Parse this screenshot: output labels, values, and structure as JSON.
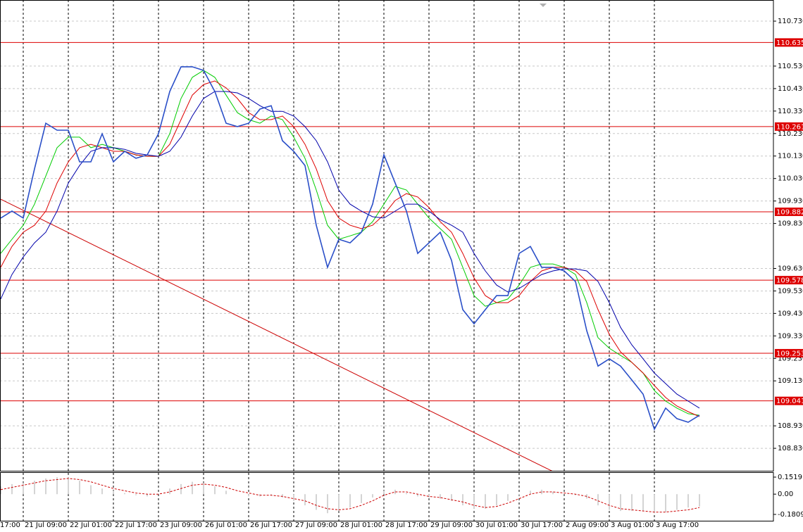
{
  "chart_data": [
    {
      "type": "line",
      "categories": [
        "17:00",
        null,
        "21 Jul 09:00",
        null,
        null,
        null,
        "22 Jul 01:00",
        null,
        null,
        null,
        "22 Jul 17:00",
        null,
        null,
        null,
        "23 Jul 09:00",
        null,
        null,
        null,
        "26 Jul 01:00",
        null,
        null,
        null,
        "26 Jul 17:00",
        null,
        null,
        null,
        "27 Jul 09:00",
        null,
        null,
        null,
        "28 Jul 01:00",
        null,
        null,
        null,
        "28 Jul 17:00",
        null,
        null,
        null,
        "29 Jul 09:00",
        null,
        null,
        null,
        "30 Jul 01:00",
        null,
        null,
        null,
        "30 Jul 17:00",
        null,
        null,
        null,
        "2 Aug 09:00",
        null,
        null,
        null,
        "3 Aug 01:00",
        null,
        null,
        null,
        "3 Aug 17:00",
        null,
        null,
        null,
        null
      ],
      "series": [
        {
          "color": "#2a4fc8",
          "values": [
            109.854,
            109.885,
            109.854,
            110.073,
            110.276,
            110.245,
            110.245,
            110.104,
            110.104,
            110.229,
            110.104,
            110.151,
            110.12,
            110.135,
            110.229,
            110.417,
            110.527,
            110.527,
            110.511,
            110.417,
            110.276,
            110.261,
            110.276,
            110.339,
            110.354,
            110.198,
            110.151,
            110.088,
            109.822,
            109.635,
            109.76,
            109.744,
            109.791,
            109.916,
            110.135,
            110.01,
            109.885,
            109.697,
            109.744,
            109.791,
            109.666,
            109.447,
            109.384,
            109.447,
            109.509,
            109.509,
            109.697,
            109.728,
            109.635,
            109.635,
            109.619,
            109.572,
            109.353,
            109.196,
            109.228,
            109.196,
            109.134,
            109.071,
            108.915,
            109.009,
            108.962,
            108.946,
            108.977
          ]
        },
        {
          "color": "#00cc00",
          "values": [
            109.697,
            109.76,
            109.822,
            109.916,
            110.041,
            110.167,
            110.214,
            110.214,
            110.167,
            110.182,
            110.167,
            110.151,
            110.135,
            110.129,
            110.129,
            110.229,
            110.386,
            110.48,
            110.511,
            110.48,
            110.401,
            110.323,
            110.292,
            110.276,
            110.308,
            110.292,
            110.214,
            110.12,
            109.979,
            109.822,
            109.76,
            109.775,
            109.791,
            109.838,
            109.916,
            109.995,
            109.979,
            109.916,
            109.854,
            109.807,
            109.76,
            109.635,
            109.509,
            109.462,
            109.478,
            109.494,
            109.556,
            109.635,
            109.65,
            109.65,
            109.635,
            109.603,
            109.478,
            109.322,
            109.275,
            109.243,
            109.212,
            109.165,
            109.087,
            109.04,
            109.009,
            108.984,
            108.977
          ]
        },
        {
          "color": "#dd0000",
          "values": [
            109.635,
            109.728,
            109.791,
            109.822,
            109.885,
            110.01,
            110.104,
            110.167,
            110.182,
            110.167,
            110.151,
            110.151,
            110.135,
            110.129,
            110.129,
            110.182,
            110.292,
            110.401,
            110.448,
            110.464,
            110.433,
            110.386,
            110.323,
            110.292,
            110.292,
            110.308,
            110.261,
            110.182,
            110.073,
            109.932,
            109.854,
            109.822,
            109.807,
            109.822,
            109.869,
            109.932,
            109.963,
            109.948,
            109.901,
            109.838,
            109.791,
            109.697,
            109.588,
            109.509,
            109.478,
            109.478,
            109.509,
            109.572,
            109.619,
            109.635,
            109.635,
            109.619,
            109.572,
            109.447,
            109.337,
            109.259,
            109.212,
            109.165,
            109.109,
            109.056,
            109.018,
            108.993,
            108.971
          ]
        },
        {
          "color": "#0000aa",
          "values": [
            109.494,
            109.603,
            109.681,
            109.744,
            109.791,
            109.885,
            110.01,
            110.088,
            110.151,
            110.167,
            110.167,
            110.16,
            110.142,
            110.135,
            110.129,
            110.151,
            110.214,
            110.308,
            110.386,
            110.417,
            110.417,
            110.411,
            110.386,
            110.354,
            110.329,
            110.329,
            110.308,
            110.261,
            110.198,
            110.104,
            109.979,
            109.916,
            109.885,
            109.86,
            109.854,
            109.885,
            109.916,
            109.916,
            109.885,
            109.847,
            109.822,
            109.791,
            109.697,
            109.619,
            109.556,
            109.525,
            109.541,
            109.572,
            109.603,
            109.619,
            109.628,
            109.628,
            109.619,
            109.572,
            109.478,
            109.368,
            109.29,
            109.228,
            109.165,
            109.118,
            109.071,
            109.04,
            109.009
          ]
        }
      ],
      "ylim": [
        108.727,
        110.824
      ],
      "yticks": [
        {
          "value": 110.73,
          "label": "110.730"
        },
        {
          "value": 110.53,
          "label": "110.530"
        },
        {
          "value": 110.43,
          "label": "110.430"
        },
        {
          "value": 110.33,
          "label": "110.330"
        },
        {
          "value": 110.23,
          "label": "110.230"
        },
        {
          "value": 110.13,
          "label": "110.130"
        },
        {
          "value": 110.03,
          "label": "110.030"
        },
        {
          "value": 109.93,
          "label": "109.930"
        },
        {
          "value": 109.83,
          "label": "109.830"
        },
        {
          "value": 109.63,
          "label": "109.630"
        },
        {
          "value": 109.53,
          "label": "109.530"
        },
        {
          "value": 109.43,
          "label": "109.430"
        },
        {
          "value": 109.33,
          "label": "109.330"
        },
        {
          "value": 109.23,
          "label": "109.230"
        },
        {
          "value": 109.13,
          "label": "109.130"
        },
        {
          "value": 108.93,
          "label": "108.930"
        },
        {
          "value": 108.83,
          "label": "108.830"
        }
      ],
      "grid": true,
      "levels": [
        110.635,
        110.261,
        109.882,
        109.578,
        109.253,
        109.041
      ],
      "level_color": "#dd0000",
      "trendline": {
        "x": [
          0,
          49
        ],
        "values": [
          109.938,
          108.727
        ],
        "color": "#cc0000"
      }
    },
    {
      "type": "bar",
      "values": [
        0.07,
        0.09,
        0.1,
        0.12,
        0.14,
        0.15,
        0.15,
        0.12,
        0.08,
        0.05,
        0.03,
        0.01,
        -0.01,
        -0.02,
        0.0,
        0.05,
        0.09,
        0.11,
        0.1,
        0.07,
        0.03,
        0.0,
        -0.02,
        -0.02,
        -0.01,
        -0.03,
        -0.06,
        -0.1,
        -0.14,
        -0.17,
        -0.15,
        -0.12,
        -0.08,
        -0.03,
        0.03,
        0.04,
        0.01,
        -0.02,
        -0.03,
        -0.04,
        -0.06,
        -0.1,
        -0.13,
        -0.13,
        -0.1,
        -0.06,
        -0.01,
        0.03,
        0.04,
        0.02,
        0.0,
        -0.01,
        -0.04,
        -0.1,
        -0.14,
        -0.15,
        -0.15,
        -0.15,
        -0.17,
        -0.16,
        -0.14,
        -0.12,
        -0.11
      ],
      "color": "#a8a8a8",
      "signal": {
        "color": "#cc0000",
        "values": [
          0.04,
          0.06,
          0.08,
          0.1,
          0.12,
          0.13,
          0.14,
          0.13,
          0.11,
          0.08,
          0.05,
          0.03,
          0.01,
          0.0,
          0.0,
          0.02,
          0.05,
          0.08,
          0.09,
          0.08,
          0.06,
          0.03,
          0.01,
          -0.01,
          -0.01,
          -0.02,
          -0.04,
          -0.06,
          -0.1,
          -0.13,
          -0.14,
          -0.13,
          -0.1,
          -0.06,
          -0.01,
          0.02,
          0.02,
          0.0,
          -0.02,
          -0.03,
          -0.05,
          -0.07,
          -0.1,
          -0.12,
          -0.11,
          -0.08,
          -0.04,
          0.0,
          0.02,
          0.02,
          0.01,
          0.0,
          -0.02,
          -0.06,
          -0.1,
          -0.13,
          -0.14,
          -0.15,
          -0.16,
          -0.16,
          -0.15,
          -0.14,
          -0.12
        ]
      },
      "ylim": [
        -0.1809,
        0.1519
      ],
      "yticks": [
        0.1519,
        {
          "value": 0,
          "label": "0.00"
        },
        -0.1809
      ]
    }
  ]
}
